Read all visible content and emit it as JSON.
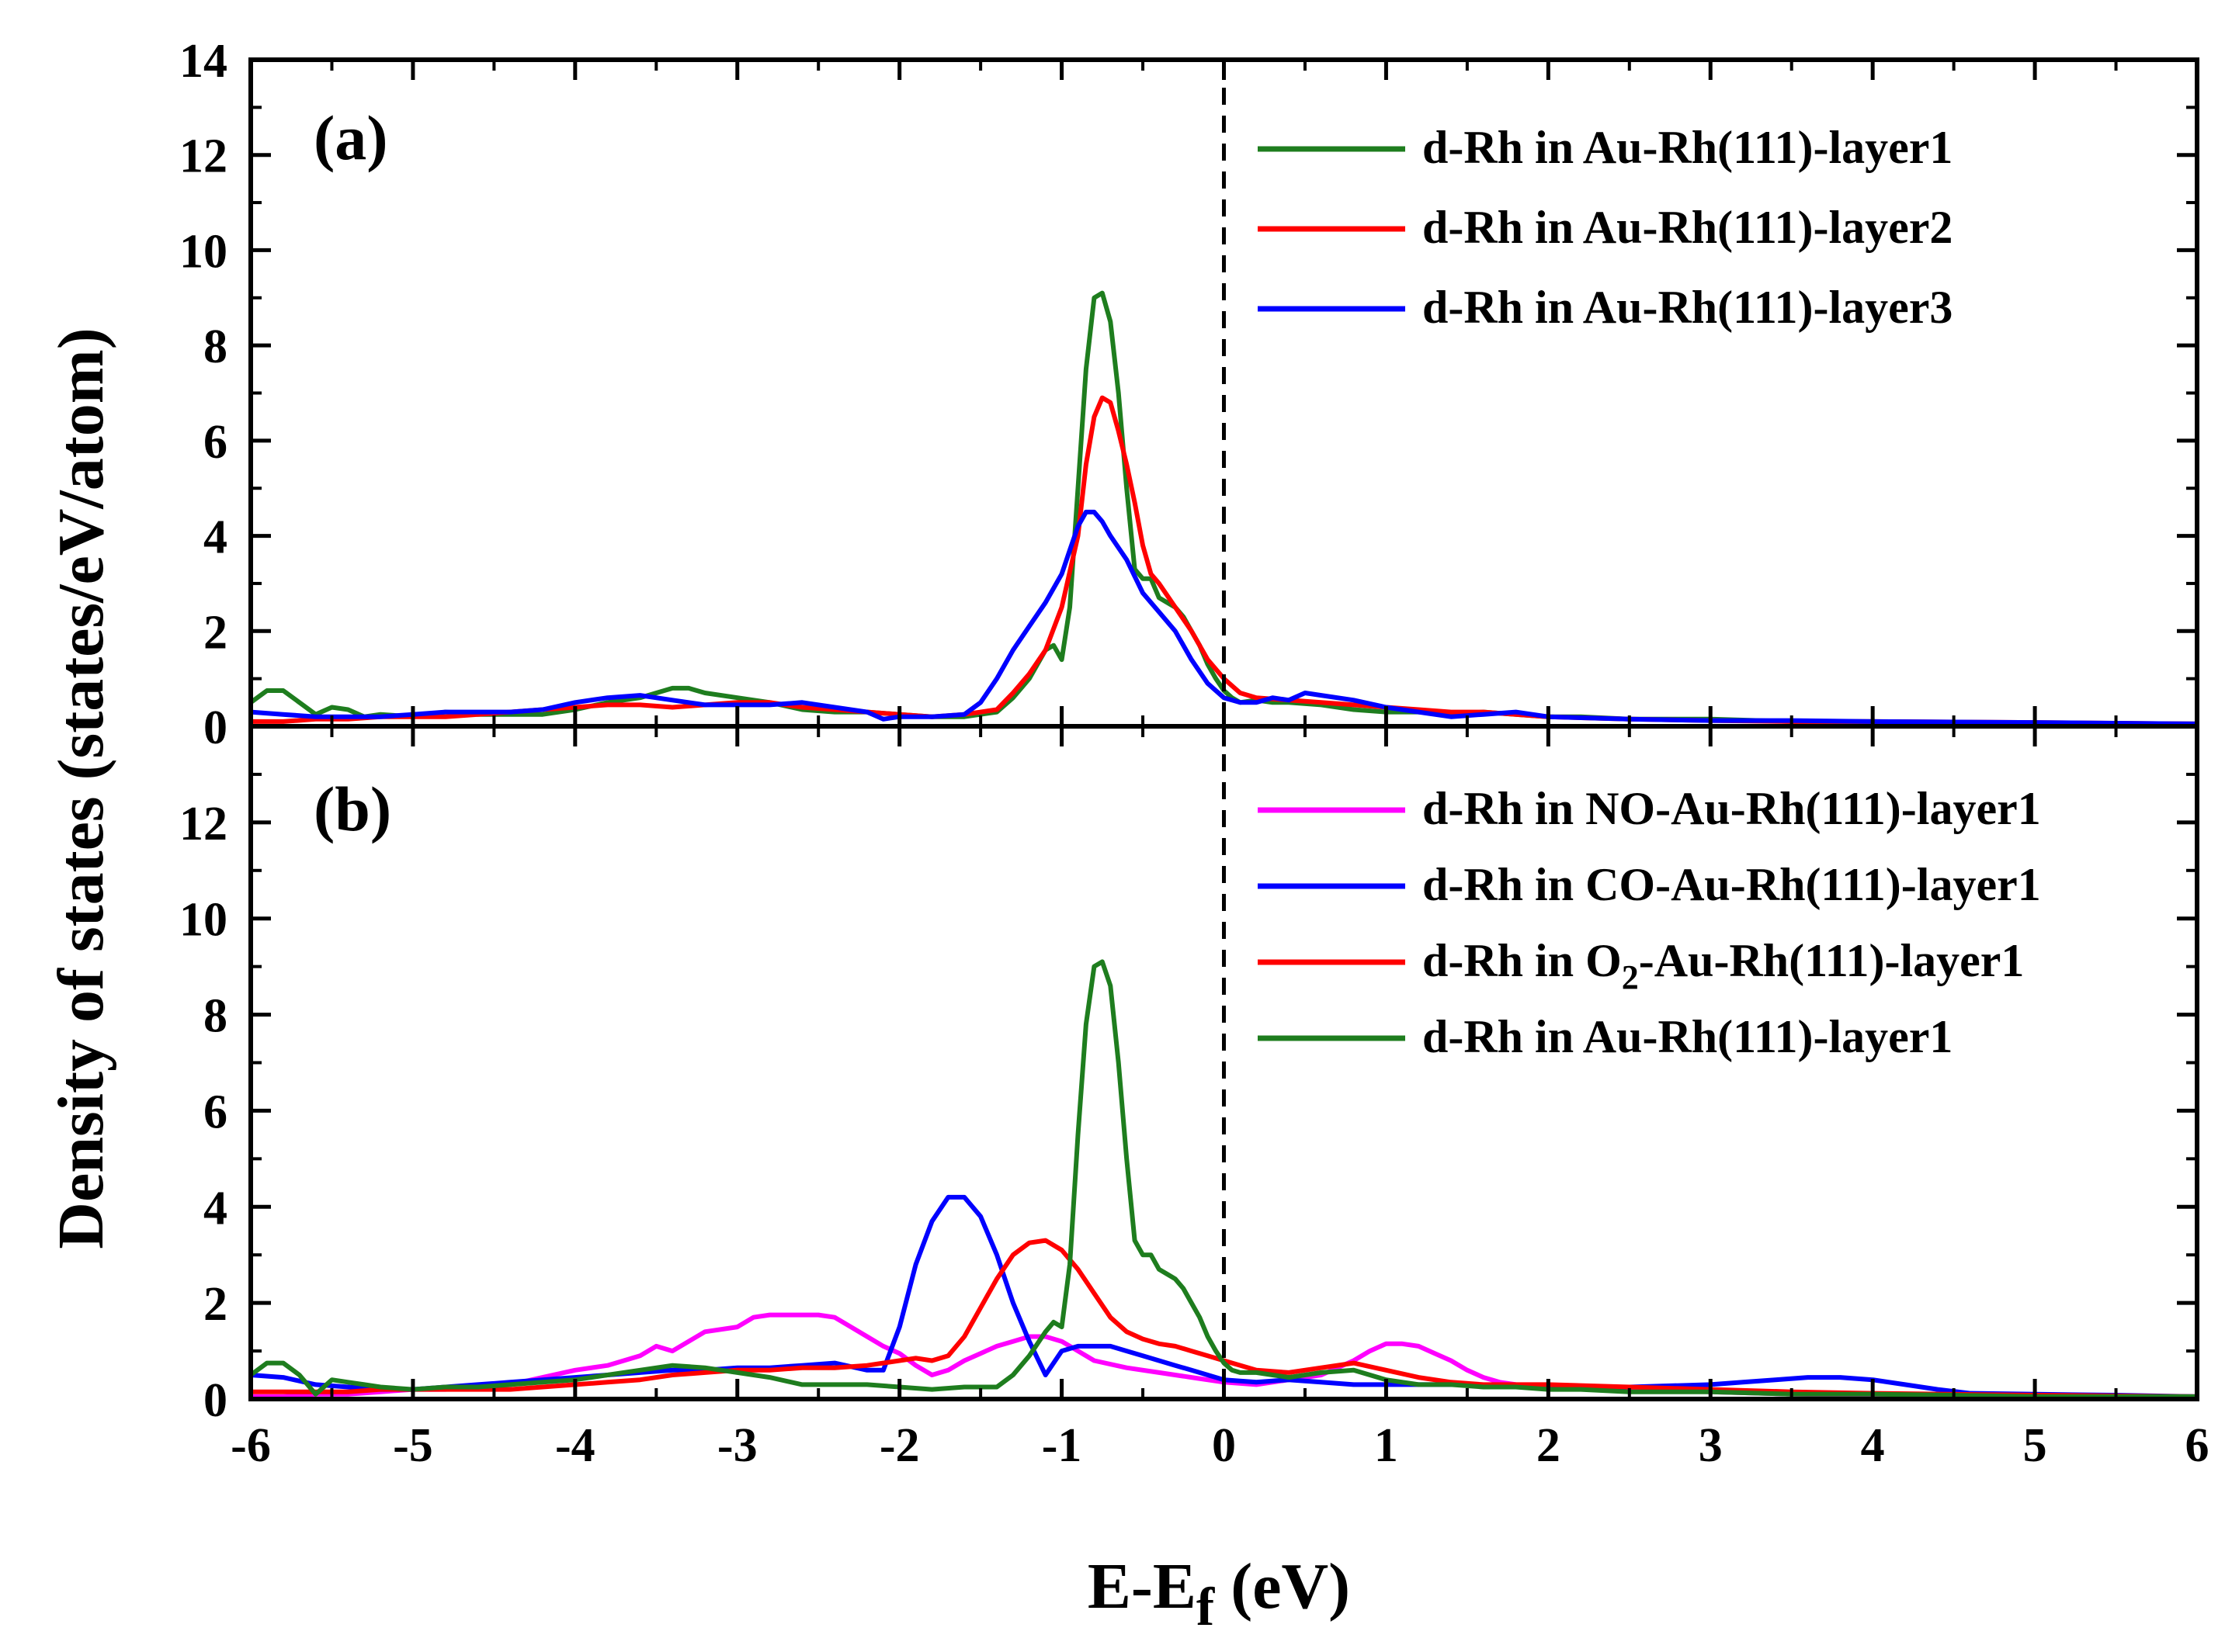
{
  "figure": {
    "ylabel": "Density of states (states/eV/atom)",
    "xlabel_main": "E-E",
    "xlabel_sub": "f",
    "xlabel_unit": " (eV)",
    "xlim": [
      -6,
      6
    ],
    "xticks": [
      "-6",
      "-5",
      "-4",
      "-3",
      "-2",
      "-1",
      "0",
      "1",
      "2",
      "3",
      "4",
      "5",
      "6"
    ],
    "fermi_level": 0,
    "colors": {
      "green": "#1e7d1e",
      "red": "#ff0000",
      "blue": "#0000ff",
      "magenta": "#ff00ff",
      "axis": "#000000"
    }
  },
  "chart_data": [
    {
      "type": "line",
      "panel": "(a)",
      "ylim": [
        0,
        14
      ],
      "yticks": [
        "0",
        "2",
        "4",
        "6",
        "8",
        "10",
        "12",
        "14"
      ],
      "series": [
        {
          "name": "d-Rh in Au-Rh(111)-layer1",
          "color": "#1e7d1e",
          "x": [
            -6.0,
            -5.9,
            -5.8,
            -5.7,
            -5.6,
            -5.5,
            -5.4,
            -5.3,
            -5.2,
            -5.0,
            -4.8,
            -4.6,
            -4.4,
            -4.2,
            -4.0,
            -3.8,
            -3.6,
            -3.4,
            -3.3,
            -3.2,
            -3.0,
            -2.8,
            -2.6,
            -2.4,
            -2.2,
            -2.0,
            -1.8,
            -1.6,
            -1.4,
            -1.3,
            -1.2,
            -1.1,
            -1.05,
            -1.0,
            -0.95,
            -0.9,
            -0.85,
            -0.8,
            -0.75,
            -0.7,
            -0.65,
            -0.6,
            -0.55,
            -0.5,
            -0.45,
            -0.4,
            -0.35,
            -0.3,
            -0.25,
            -0.2,
            -0.15,
            -0.1,
            -0.05,
            0.0,
            0.05,
            0.1,
            0.2,
            0.3,
            0.4,
            0.6,
            0.8,
            1.0,
            1.2,
            1.4,
            1.6,
            1.8,
            2.0,
            2.2,
            2.5,
            3.0,
            3.5,
            4.0,
            4.5,
            5.0,
            5.5,
            6.0
          ],
          "y": [
            0.5,
            0.75,
            0.75,
            0.5,
            0.25,
            0.4,
            0.35,
            0.2,
            0.25,
            0.2,
            0.3,
            0.25,
            0.25,
            0.25,
            0.35,
            0.5,
            0.6,
            0.8,
            0.8,
            0.7,
            0.6,
            0.5,
            0.35,
            0.3,
            0.3,
            0.25,
            0.2,
            0.2,
            0.3,
            0.6,
            1.0,
            1.6,
            1.7,
            1.4,
            2.5,
            5.0,
            7.5,
            9.0,
            9.1,
            8.5,
            7.0,
            5.0,
            3.3,
            3.1,
            3.1,
            2.7,
            2.6,
            2.5,
            2.3,
            2.0,
            1.7,
            1.3,
            1.0,
            0.75,
            0.6,
            0.5,
            0.55,
            0.5,
            0.5,
            0.45,
            0.35,
            0.3,
            0.3,
            0.25,
            0.3,
            0.25,
            0.2,
            0.2,
            0.15,
            0.15,
            0.1,
            0.1,
            0.08,
            0.05,
            0.05,
            0.05
          ]
        },
        {
          "name": "d-Rh in Au-Rh(111)-layer2",
          "color": "#ff0000",
          "x": [
            -6.0,
            -5.8,
            -5.6,
            -5.4,
            -5.2,
            -5.0,
            -4.8,
            -4.6,
            -4.4,
            -4.2,
            -4.0,
            -3.8,
            -3.6,
            -3.4,
            -3.2,
            -3.0,
            -2.8,
            -2.6,
            -2.4,
            -2.2,
            -2.0,
            -1.8,
            -1.6,
            -1.4,
            -1.3,
            -1.2,
            -1.1,
            -1.0,
            -0.9,
            -0.85,
            -0.8,
            -0.75,
            -0.7,
            -0.65,
            -0.6,
            -0.55,
            -0.5,
            -0.45,
            -0.4,
            -0.3,
            -0.2,
            -0.1,
            0.0,
            0.1,
            0.2,
            0.4,
            0.6,
            0.8,
            1.0,
            1.2,
            1.4,
            1.6,
            1.8,
            2.0,
            2.5,
            3.0,
            3.5,
            4.0,
            5.0,
            6.0
          ],
          "y": [
            0.1,
            0.1,
            0.15,
            0.15,
            0.2,
            0.2,
            0.2,
            0.25,
            0.3,
            0.35,
            0.4,
            0.45,
            0.45,
            0.4,
            0.45,
            0.5,
            0.5,
            0.4,
            0.35,
            0.3,
            0.25,
            0.2,
            0.25,
            0.35,
            0.7,
            1.1,
            1.6,
            2.5,
            4.0,
            5.5,
            6.5,
            6.9,
            6.8,
            6.2,
            5.5,
            4.7,
            3.8,
            3.2,
            3.0,
            2.5,
            2.0,
            1.4,
            1.0,
            0.7,
            0.6,
            0.55,
            0.5,
            0.45,
            0.4,
            0.35,
            0.3,
            0.3,
            0.25,
            0.2,
            0.15,
            0.12,
            0.1,
            0.1,
            0.08,
            0.05
          ]
        },
        {
          "name": "d-Rh in Au-Rh(111)-layer3",
          "color": "#0000ff",
          "x": [
            -6.0,
            -5.8,
            -5.6,
            -5.4,
            -5.2,
            -5.0,
            -4.8,
            -4.6,
            -4.4,
            -4.2,
            -4.0,
            -3.8,
            -3.6,
            -3.4,
            -3.2,
            -3.0,
            -2.8,
            -2.6,
            -2.4,
            -2.2,
            -2.1,
            -2.0,
            -1.8,
            -1.6,
            -1.5,
            -1.4,
            -1.3,
            -1.2,
            -1.1,
            -1.0,
            -0.95,
            -0.9,
            -0.85,
            -0.8,
            -0.75,
            -0.7,
            -0.6,
            -0.5,
            -0.4,
            -0.3,
            -0.2,
            -0.1,
            0.0,
            0.1,
            0.2,
            0.3,
            0.4,
            0.5,
            0.6,
            0.8,
            1.0,
            1.2,
            1.4,
            1.6,
            1.8,
            2.0,
            2.5,
            3.0,
            3.5,
            4.0,
            5.0,
            6.0
          ],
          "y": [
            0.3,
            0.25,
            0.2,
            0.2,
            0.2,
            0.25,
            0.3,
            0.3,
            0.3,
            0.35,
            0.5,
            0.6,
            0.65,
            0.55,
            0.45,
            0.45,
            0.45,
            0.5,
            0.4,
            0.3,
            0.15,
            0.2,
            0.2,
            0.25,
            0.5,
            1.0,
            1.6,
            2.1,
            2.6,
            3.2,
            3.7,
            4.2,
            4.5,
            4.5,
            4.3,
            4.0,
            3.5,
            2.8,
            2.4,
            2.0,
            1.4,
            0.9,
            0.6,
            0.5,
            0.5,
            0.6,
            0.55,
            0.7,
            0.65,
            0.55,
            0.4,
            0.3,
            0.2,
            0.25,
            0.3,
            0.2,
            0.15,
            0.12,
            0.12,
            0.1,
            0.08,
            0.05
          ]
        }
      ]
    },
    {
      "type": "line",
      "panel": "(b)",
      "ylim": [
        0,
        14
      ],
      "yticks": [
        "0",
        "2",
        "4",
        "6",
        "8",
        "10",
        "12",
        ""
      ],
      "series": [
        {
          "name": "d-Rh in NO-Au-Rh(111)-layer1",
          "color": "#ff00ff",
          "x": [
            -6.0,
            -5.8,
            -5.6,
            -5.4,
            -5.2,
            -5.0,
            -4.8,
            -4.6,
            -4.4,
            -4.2,
            -4.0,
            -3.8,
            -3.6,
            -3.5,
            -3.4,
            -3.3,
            -3.2,
            -3.0,
            -2.9,
            -2.8,
            -2.7,
            -2.6,
            -2.5,
            -2.4,
            -2.3,
            -2.2,
            -2.1,
            -2.0,
            -1.9,
            -1.8,
            -1.7,
            -1.6,
            -1.5,
            -1.4,
            -1.3,
            -1.2,
            -1.1,
            -1.0,
            -0.9,
            -0.8,
            -0.6,
            -0.4,
            -0.2,
            0.0,
            0.2,
            0.4,
            0.6,
            0.8,
            0.9,
            1.0,
            1.1,
            1.2,
            1.3,
            1.4,
            1.5,
            1.6,
            1.7,
            1.8,
            2.0,
            2.5,
            3.0,
            3.5,
            4.0,
            5.0,
            6.0
          ],
          "y": [
            0.05,
            0.05,
            0.1,
            0.1,
            0.15,
            0.2,
            0.2,
            0.25,
            0.3,
            0.45,
            0.6,
            0.7,
            0.9,
            1.1,
            1.0,
            1.2,
            1.4,
            1.5,
            1.7,
            1.75,
            1.75,
            1.75,
            1.75,
            1.7,
            1.5,
            1.3,
            1.1,
            0.95,
            0.7,
            0.5,
            0.6,
            0.8,
            0.95,
            1.1,
            1.2,
            1.3,
            1.3,
            1.2,
            1.0,
            0.8,
            0.65,
            0.55,
            0.45,
            0.35,
            0.3,
            0.4,
            0.5,
            0.8,
            1.0,
            1.15,
            1.15,
            1.1,
            0.95,
            0.8,
            0.6,
            0.45,
            0.35,
            0.3,
            0.25,
            0.2,
            0.15,
            0.1,
            0.08,
            0.05,
            0.05
          ]
        },
        {
          "name": "d-Rh in CO-Au-Rh(111)-layer1",
          "color": "#0000ff",
          "x": [
            -6.0,
            -5.8,
            -5.6,
            -5.4,
            -5.2,
            -5.0,
            -4.8,
            -4.6,
            -4.4,
            -4.2,
            -4.0,
            -3.8,
            -3.6,
            -3.4,
            -3.2,
            -3.0,
            -2.8,
            -2.6,
            -2.4,
            -2.2,
            -2.1,
            -2.0,
            -1.9,
            -1.8,
            -1.7,
            -1.6,
            -1.5,
            -1.4,
            -1.3,
            -1.2,
            -1.1,
            -1.0,
            -0.9,
            -0.8,
            -0.7,
            -0.6,
            -0.5,
            -0.4,
            -0.3,
            -0.2,
            -0.1,
            0.0,
            0.2,
            0.4,
            0.6,
            0.8,
            1.0,
            1.2,
            1.5,
            2.0,
            2.5,
            3.0,
            3.2,
            3.4,
            3.6,
            3.8,
            4.0,
            4.2,
            4.4,
            4.6,
            5.0,
            5.5,
            6.0
          ],
          "y": [
            0.5,
            0.45,
            0.3,
            0.25,
            0.2,
            0.2,
            0.25,
            0.3,
            0.35,
            0.4,
            0.45,
            0.5,
            0.55,
            0.6,
            0.6,
            0.65,
            0.65,
            0.7,
            0.75,
            0.6,
            0.6,
            1.5,
            2.8,
            3.7,
            4.2,
            4.2,
            3.8,
            3.0,
            2.0,
            1.2,
            0.5,
            1.0,
            1.1,
            1.1,
            1.1,
            1.0,
            0.9,
            0.8,
            0.7,
            0.6,
            0.5,
            0.4,
            0.35,
            0.4,
            0.35,
            0.3,
            0.3,
            0.3,
            0.3,
            0.25,
            0.25,
            0.3,
            0.35,
            0.4,
            0.45,
            0.45,
            0.4,
            0.3,
            0.2,
            0.12,
            0.1,
            0.08,
            0.05
          ]
        },
        {
          "name": "d-Rh in O2-Au-Rh(111)-layer1",
          "display_name_main": "d-Rh in O",
          "display_name_sub": "2",
          "display_name_rest": "-Au-Rh(111)-layer1",
          "color": "#ff0000",
          "x": [
            -6.0,
            -5.8,
            -5.6,
            -5.4,
            -5.2,
            -5.0,
            -4.8,
            -4.6,
            -4.4,
            -4.2,
            -4.0,
            -3.8,
            -3.6,
            -3.4,
            -3.2,
            -3.0,
            -2.8,
            -2.6,
            -2.4,
            -2.2,
            -2.0,
            -1.9,
            -1.8,
            -1.7,
            -1.6,
            -1.5,
            -1.4,
            -1.3,
            -1.2,
            -1.1,
            -1.0,
            -0.9,
            -0.8,
            -0.7,
            -0.6,
            -0.5,
            -0.4,
            -0.3,
            -0.2,
            -0.1,
            0.0,
            0.2,
            0.4,
            0.6,
            0.8,
            1.0,
            1.2,
            1.4,
            1.6,
            1.8,
            2.0,
            2.5,
            3.0,
            3.5,
            4.0,
            5.0,
            6.0
          ],
          "y": [
            0.15,
            0.15,
            0.15,
            0.15,
            0.2,
            0.2,
            0.2,
            0.2,
            0.2,
            0.25,
            0.3,
            0.35,
            0.4,
            0.5,
            0.55,
            0.6,
            0.6,
            0.65,
            0.65,
            0.7,
            0.8,
            0.85,
            0.8,
            0.9,
            1.3,
            1.9,
            2.5,
            3.0,
            3.25,
            3.3,
            3.1,
            2.7,
            2.2,
            1.7,
            1.4,
            1.25,
            1.15,
            1.1,
            1.0,
            0.9,
            0.8,
            0.6,
            0.55,
            0.65,
            0.75,
            0.6,
            0.45,
            0.35,
            0.3,
            0.3,
            0.3,
            0.25,
            0.2,
            0.15,
            0.12,
            0.08,
            0.05
          ]
        },
        {
          "name": "d-Rh in Au-Rh(111)-layer1",
          "color": "#1e7d1e",
          "x": [
            -6.0,
            -5.9,
            -5.8,
            -5.7,
            -5.6,
            -5.5,
            -5.4,
            -5.3,
            -5.2,
            -5.0,
            -4.8,
            -4.6,
            -4.4,
            -4.2,
            -4.0,
            -3.8,
            -3.6,
            -3.4,
            -3.2,
            -3.0,
            -2.8,
            -2.6,
            -2.4,
            -2.2,
            -2.0,
            -1.8,
            -1.6,
            -1.4,
            -1.3,
            -1.2,
            -1.1,
            -1.05,
            -1.0,
            -0.95,
            -0.9,
            -0.85,
            -0.8,
            -0.75,
            -0.7,
            -0.65,
            -0.6,
            -0.55,
            -0.5,
            -0.45,
            -0.4,
            -0.35,
            -0.3,
            -0.25,
            -0.2,
            -0.15,
            -0.1,
            -0.05,
            0.0,
            0.05,
            0.1,
            0.2,
            0.3,
            0.4,
            0.6,
            0.8,
            1.0,
            1.2,
            1.4,
            1.6,
            1.8,
            2.0,
            2.2,
            2.5,
            3.0,
            3.5,
            4.0,
            4.5,
            5.0,
            5.5,
            6.0
          ],
          "y": [
            0.5,
            0.75,
            0.75,
            0.5,
            0.1,
            0.4,
            0.35,
            0.3,
            0.25,
            0.2,
            0.25,
            0.25,
            0.3,
            0.35,
            0.4,
            0.5,
            0.6,
            0.7,
            0.65,
            0.55,
            0.45,
            0.3,
            0.3,
            0.3,
            0.25,
            0.2,
            0.25,
            0.25,
            0.5,
            0.9,
            1.4,
            1.6,
            1.5,
            2.8,
            5.5,
            7.8,
            9.0,
            9.1,
            8.6,
            7.0,
            5.0,
            3.3,
            3.0,
            3.0,
            2.7,
            2.6,
            2.5,
            2.3,
            2.0,
            1.7,
            1.3,
            1.0,
            0.75,
            0.6,
            0.55,
            0.55,
            0.5,
            0.45,
            0.55,
            0.6,
            0.4,
            0.3,
            0.3,
            0.25,
            0.25,
            0.2,
            0.2,
            0.15,
            0.15,
            0.1,
            0.1,
            0.08,
            0.05,
            0.05,
            0.05
          ]
        }
      ]
    }
  ]
}
